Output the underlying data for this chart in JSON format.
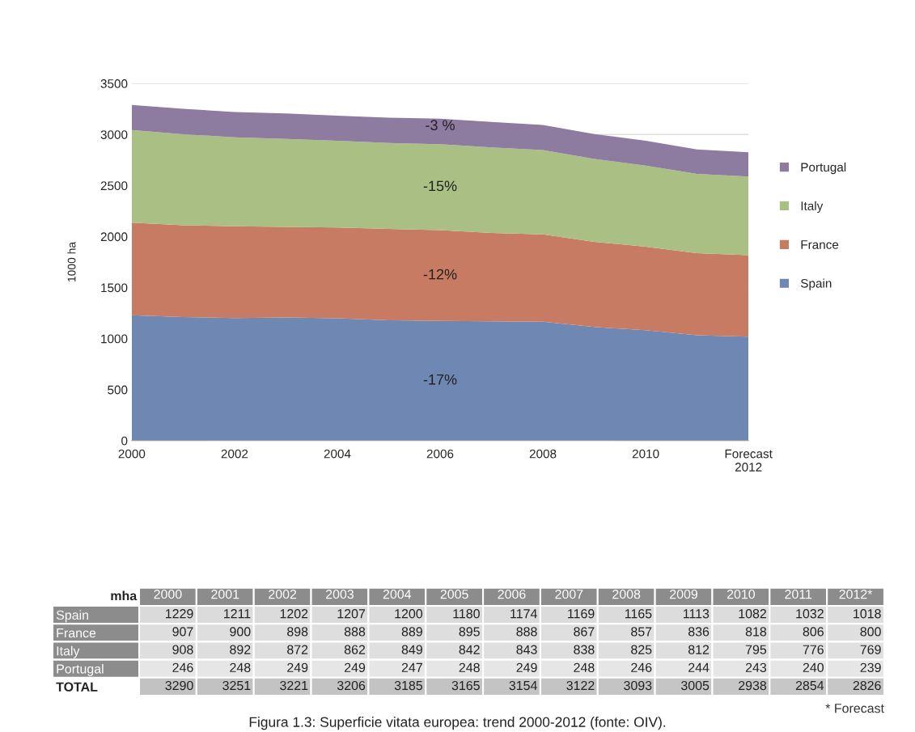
{
  "chart_data": [
    {
      "type": "area",
      "stacked": true,
      "ylabel": "1000 ha",
      "categories": [
        "2000",
        null,
        "2002",
        null,
        "2004",
        null,
        "2006",
        null,
        "2008",
        null,
        "2010",
        null,
        "Forecast\n2012"
      ],
      "series": [
        {
          "name": "Spain",
          "color": "#6f88b3",
          "values": [
            1229,
            1211,
            1202,
            1207,
            1200,
            1180,
            1174,
            1169,
            1165,
            1113,
            1082,
            1032,
            1018
          ]
        },
        {
          "name": "France",
          "color": "#c77b62",
          "values": [
            907,
            900,
            898,
            888,
            889,
            895,
            888,
            867,
            857,
            836,
            818,
            806,
            800
          ]
        },
        {
          "name": "Italy",
          "color": "#a9bf83",
          "values": [
            908,
            892,
            872,
            862,
            849,
            842,
            843,
            838,
            825,
            812,
            795,
            776,
            769
          ]
        },
        {
          "name": "Portugal",
          "color": "#8e7ba0",
          "values": [
            246,
            248,
            249,
            249,
            247,
            248,
            249,
            248,
            246,
            244,
            243,
            240,
            239
          ]
        }
      ],
      "ylim": [
        0,
        3500
      ],
      "yticks": [
        0,
        500,
        1000,
        1500,
        2000,
        2500,
        3000,
        3500
      ],
      "grid": "y",
      "legend": "right",
      "annotations": [
        "-17%",
        "-12%",
        "-15%",
        "-3 %"
      ]
    },
    {
      "type": "heatmap",
      "categories": [
        "2000",
        "2001",
        "2002",
        "2003",
        "2004",
        "2005",
        "2006",
        "2007",
        "2008",
        "2009",
        "2010",
        "2011",
        "2012*"
      ],
      "y_categories": [
        "Spain",
        "France",
        "Italy",
        "Portugal",
        "TOTAL"
      ],
      "cells": [
        [
          1229,
          1211,
          1202,
          1207,
          1200,
          1180,
          1174,
          1169,
          1165,
          1113,
          1082,
          1032,
          1018
        ],
        [
          907,
          900,
          898,
          888,
          889,
          895,
          888,
          867,
          857,
          836,
          818,
          806,
          800
        ],
        [
          908,
          892,
          872,
          862,
          849,
          842,
          843,
          838,
          825,
          812,
          795,
          776,
          769
        ],
        [
          246,
          248,
          249,
          249,
          247,
          248,
          249,
          248,
          246,
          244,
          243,
          240,
          239
        ],
        [
          3290,
          3251,
          3221,
          3206,
          3185,
          3165,
          3154,
          3122,
          3093,
          3005,
          2938,
          2854,
          2826
        ]
      ],
      "cell_labels": [
        [
          "1229",
          "1211",
          "1202",
          "1207",
          "1200",
          "1180",
          "1174",
          "1169",
          "1165",
          "1113",
          "1082",
          "1032",
          "1018"
        ],
        [
          "907",
          "900",
          "898",
          "888",
          "889",
          "895",
          "888",
          "867",
          "857",
          "836",
          "818",
          "806",
          "800"
        ],
        [
          "908",
          "892",
          "872",
          "862",
          "849",
          "842",
          "843",
          "838",
          "825",
          "812",
          "795",
          "776",
          "769"
        ],
        [
          "246",
          "248",
          "249",
          "249",
          "247",
          "248",
          "249",
          "248",
          "246",
          "244",
          "243",
          "240",
          "239"
        ],
        [
          "3290",
          "3251",
          "3221",
          "3206",
          "3185",
          "3165",
          "3154",
          "3122",
          "3093",
          "3005",
          "2938",
          "2854",
          "2826"
        ]
      ],
      "annotations": [
        "mha",
        "* Forecast",
        "Figura 1.3: Superficie vitata europea: trend 2000-2012 (fonte: OIV)."
      ]
    }
  ]
}
